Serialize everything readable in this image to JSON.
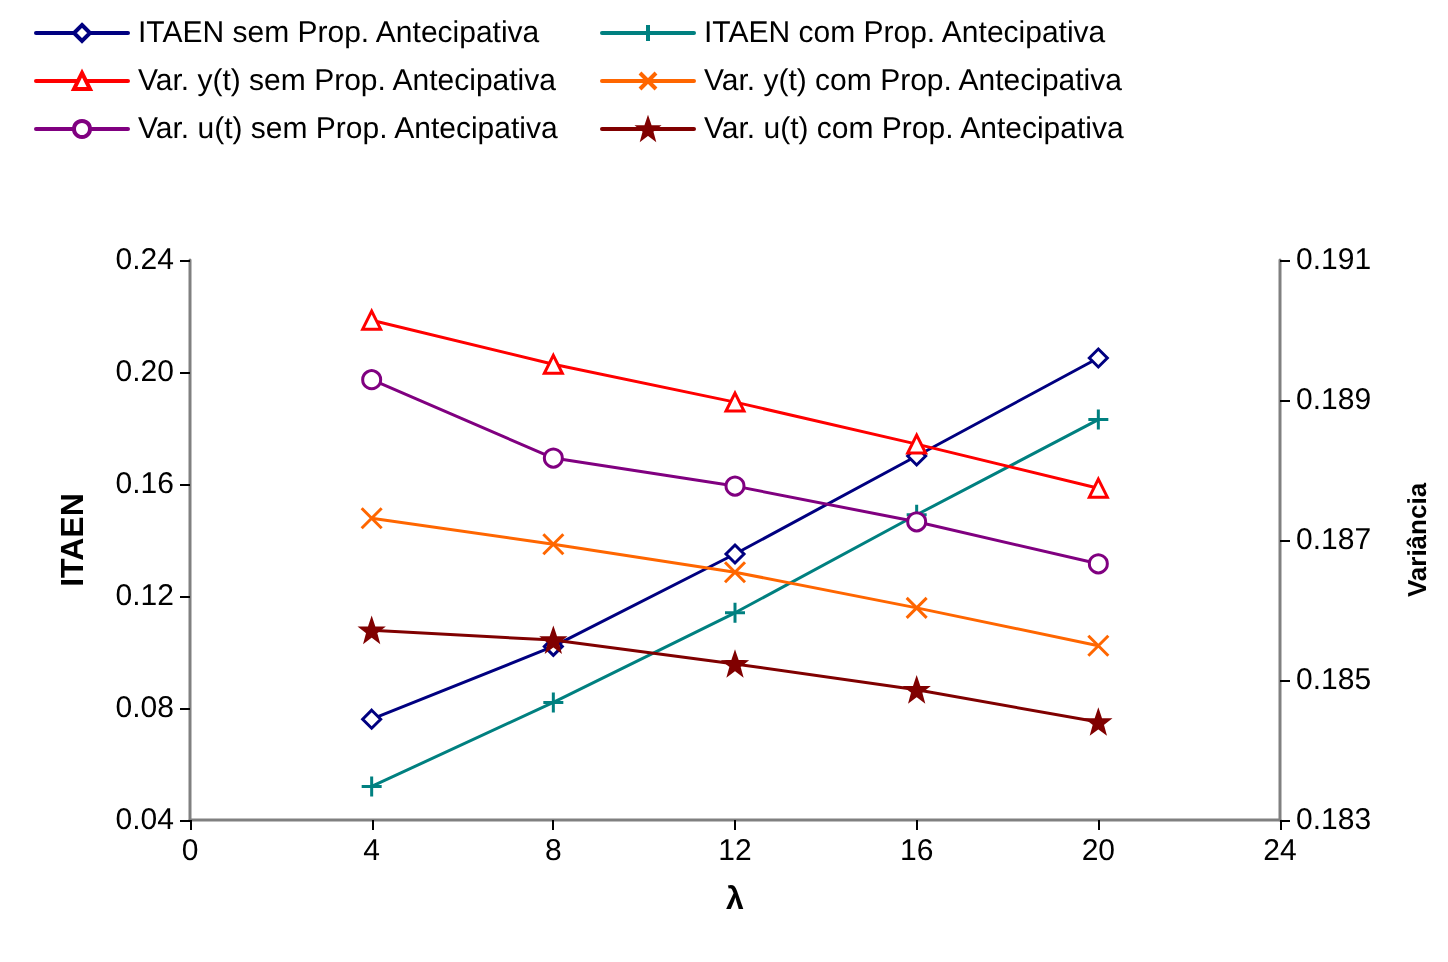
{
  "chart_data": {
    "type": "line",
    "xlabel": "λ",
    "ylabel": "ITAEN",
    "y2label": "Variância",
    "x": [
      4,
      8,
      12,
      16,
      20
    ],
    "xlim": [
      0,
      24
    ],
    "xticks": [
      0,
      4,
      8,
      12,
      16,
      20,
      24
    ],
    "ylim": [
      0.04,
      0.24
    ],
    "yticks": [
      {
        "value": 0.04,
        "label": "0.04"
      },
      {
        "value": 0.08,
        "label": "0.08"
      },
      {
        "value": 0.12,
        "label": "0.12"
      },
      {
        "value": 0.16,
        "label": "0.16"
      },
      {
        "value": 0.2,
        "label": "0.20"
      },
      {
        "value": 0.24,
        "label": "0.24"
      }
    ],
    "y2lim": [
      0.183,
      0.191
    ],
    "y2ticks": [
      0.183,
      0.185,
      0.187,
      0.189,
      0.191
    ],
    "grid": false,
    "legend": "top",
    "line_style": "solid",
    "series": [
      {
        "name": "ITAEN sem Prop. Antecipativa",
        "color": "#000080",
        "marker": "diamond",
        "values": [
          0.076,
          0.102,
          0.135,
          0.17,
          0.205
        ]
      },
      {
        "name": "ITAEN com Prop. Antecipativa",
        "color": "#008080",
        "marker": "cross",
        "values": [
          0.052,
          0.082,
          0.114,
          0.149,
          0.183
        ]
      },
      {
        "name": "Var. y(t) sem Prop. Antecipativa",
        "color": "#ff0000",
        "marker": "triangle",
        "axis": "y2",
        "values": [
          0.19014,
          0.18951,
          0.18897,
          0.18837,
          0.18774
        ]
      },
      {
        "name": "Var. y(t) com Prop. Antecipativa",
        "color": "#ff6600",
        "marker": "x",
        "axis": "y2",
        "values": [
          0.18731,
          0.18694,
          0.18654,
          0.18603,
          0.18549
        ]
      },
      {
        "name": "Var. u(t) sem Prop. Antecipativa",
        "color": "#800080",
        "marker": "circle",
        "axis": "y2",
        "values": [
          0.18929,
          0.18817,
          0.18777,
          0.18726,
          0.18666
        ]
      },
      {
        "name": "Var. u(t) com Prop. Antecipativa",
        "color": "#800000",
        "marker": "star",
        "axis": "y2",
        "values": [
          0.18571,
          0.18557,
          0.18523,
          0.18486,
          0.1844
        ]
      }
    ]
  }
}
